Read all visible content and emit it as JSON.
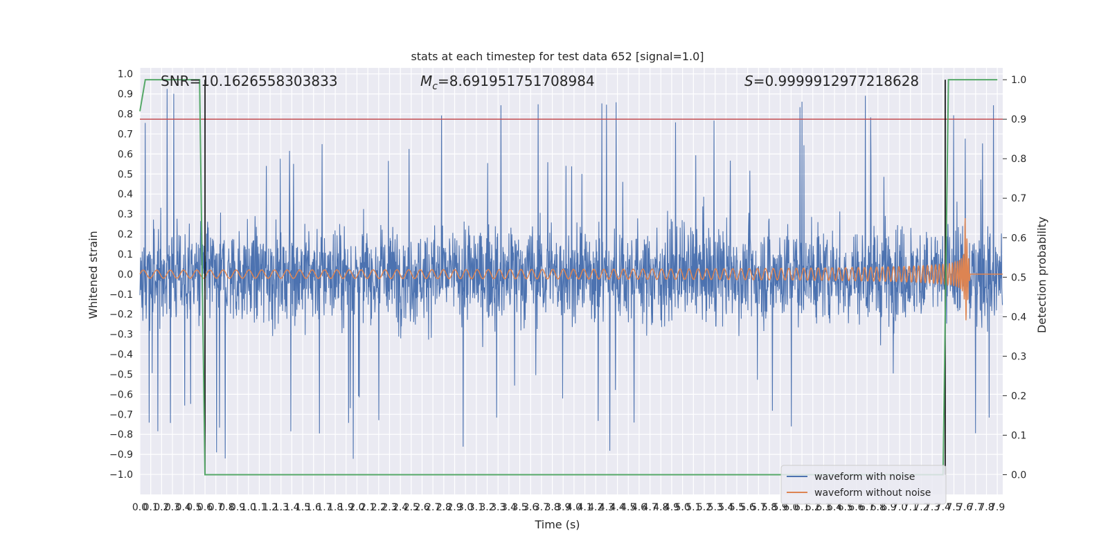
{
  "chart_data": {
    "type": "line",
    "title": "stats at each timestep for test data 652 [signal=1.0]",
    "xlabel": "Time (s)",
    "ylabel": "Whitened strain",
    "y2label": "Detection probability",
    "xlim": [
      0.0,
      7.95
    ],
    "ylim": [
      -1.1,
      1.03
    ],
    "y2lim": [
      -0.05,
      1.03
    ],
    "grid": true,
    "legend_position": "lower right",
    "xticks": [
      "0.0",
      "0.1",
      "0.2",
      "0.3",
      "0.4",
      "0.5",
      "0.6",
      "0.7",
      "0.8",
      "0.9",
      "1.0",
      "1.1",
      "1.2",
      "1.3",
      "1.4",
      "1.5",
      "1.6",
      "1.7",
      "1.8",
      "1.9",
      "2.0",
      "2.1",
      "2.2",
      "2.3",
      "2.4",
      "2.5",
      "2.6",
      "2.7",
      "2.8",
      "2.9",
      "3.0",
      "3.1",
      "3.2",
      "3.3",
      "3.4",
      "3.5",
      "3.6",
      "3.7",
      "3.8",
      "3.9",
      "4.0",
      "4.1",
      "4.2",
      "4.3",
      "4.4",
      "4.5",
      "4.6",
      "4.7",
      "4.8",
      "4.9",
      "5.0",
      "5.1",
      "5.2",
      "5.3",
      "5.4",
      "5.5",
      "5.6",
      "5.7",
      "5.8",
      "5.9",
      "6.0",
      "6.1",
      "6.2",
      "6.3",
      "6.4",
      "6.5",
      "6.6",
      "6.7",
      "6.8",
      "6.9",
      "7.0",
      "7.1",
      "7.2",
      "7.3",
      "7.4",
      "7.5",
      "7.6",
      "7.7",
      "7.8",
      "7.9"
    ],
    "yticks": [
      "1.0",
      "0.9",
      "0.8",
      "0.7",
      "0.6",
      "0.5",
      "0.4",
      "0.3",
      "0.2",
      "0.1",
      "0.0",
      "−0.1",
      "−0.2",
      "−0.3",
      "−0.4",
      "−0.5",
      "−0.6",
      "−0.7",
      "−0.8",
      "−0.9",
      "−1.0"
    ],
    "y2ticks": [
      "1.0",
      "0.9",
      "0.8",
      "0.7",
      "0.6",
      "0.5",
      "0.4",
      "0.3",
      "0.2",
      "0.1",
      "0.0"
    ],
    "annotations": {
      "snr": "SNR=10.1626558303833",
      "mc_symbol": "M",
      "mc_sub": "c",
      "mc_value": "=8.691951751708984",
      "s_symbol": "S",
      "s_value": "=0.9999912977218628"
    },
    "series": [
      {
        "name": "waveform with noise",
        "axis": "left",
        "color": "#4c72b0",
        "description_envelope": {
          "typical_max": 0.45,
          "typical_min": -0.45,
          "peak_max": 0.93,
          "peak_min": -0.96
        }
      },
      {
        "name": "waveform without noise",
        "axis": "left",
        "color": "#dd8452",
        "chirp": {
          "start_amplitude": 0.02,
          "end_amplitude": 0.3,
          "merger_time": 7.6,
          "start_frequency": 8,
          "end_frequency": 60
        }
      },
      {
        "axis": "right",
        "color": "#55a868",
        "x": [
          0.0,
          0.05,
          0.1,
          0.55,
          0.6,
          7.4,
          7.45,
          7.9
        ],
        "values": [
          0.92,
          1.0,
          1.0,
          1.0,
          0.0,
          0.0,
          1.0,
          1.0
        ]
      }
    ],
    "threshold": {
      "axis": "right",
      "value": 0.9,
      "color": "#c44e52"
    },
    "vertical_lines": [
      {
        "x": 0.6,
        "color": "#000000"
      },
      {
        "x": 7.42,
        "color": "#000000"
      }
    ],
    "legend": [
      "waveform with noise",
      "waveform without noise"
    ]
  }
}
